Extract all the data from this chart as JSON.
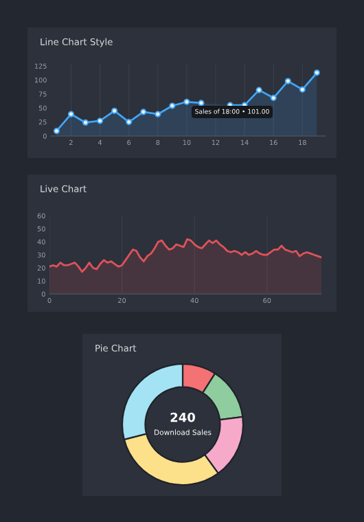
{
  "chart_data": [
    {
      "type": "area",
      "title": "Line Chart Style",
      "x": [
        1,
        2,
        3,
        4,
        5,
        6,
        7,
        8,
        9,
        10,
        11,
        12,
        13,
        14,
        15,
        16,
        17,
        18,
        19
      ],
      "series": [
        {
          "color": "#42a5f5",
          "values": [
            9,
            39,
            24,
            27,
            45,
            25,
            43,
            39,
            54,
            61,
            59,
            null,
            55,
            55,
            82,
            68,
            98,
            83,
            113
          ]
        }
      ],
      "xlim": [
        0.6,
        19.6
      ],
      "ylim": [
        0,
        130
      ],
      "xticks": [
        2,
        4,
        6,
        8,
        10,
        12,
        14,
        16,
        18
      ],
      "yticks": [
        0,
        25,
        50,
        75,
        100,
        125
      ],
      "marker": "circle",
      "grid": "x",
      "annotations": [
        "Sales of 18:00 • 101.00"
      ]
    },
    {
      "type": "area",
      "title": "Live Chart",
      "x": [
        0,
        1,
        2,
        3,
        4,
        5,
        6,
        7,
        8,
        9,
        10,
        11,
        12,
        13,
        14,
        15,
        16,
        17,
        18,
        19,
        20,
        21,
        22,
        23,
        24,
        25,
        26,
        27,
        28,
        29,
        30,
        31,
        32,
        33,
        34,
        35,
        36,
        37,
        38,
        39,
        40,
        41,
        42,
        43,
        44,
        45,
        46,
        47,
        48,
        49,
        50,
        51,
        52,
        53,
        54,
        55,
        56,
        57,
        58,
        59,
        60,
        61,
        62,
        63,
        64,
        65,
        66,
        67,
        68,
        69,
        70,
        71,
        72,
        73,
        74,
        75
      ],
      "series": [
        {
          "color": "#e0525a",
          "values": [
            21,
            22,
            21,
            24,
            22,
            22,
            23,
            24,
            21,
            17,
            20,
            24,
            20,
            19,
            23,
            26,
            24,
            25,
            23,
            21,
            22,
            26,
            30,
            34,
            33,
            28,
            25,
            29,
            31,
            35,
            40,
            41,
            37,
            34,
            35,
            38,
            37,
            36,
            42,
            41,
            38,
            36,
            35,
            38,
            41,
            39,
            41,
            38,
            36,
            33,
            32,
            33,
            32,
            30,
            32,
            30,
            31,
            33,
            31,
            30,
            30,
            32,
            34,
            34,
            37,
            34,
            33,
            32,
            33,
            29,
            31,
            32,
            31,
            30,
            29,
            28
          ]
        }
      ],
      "xlim": [
        0,
        75
      ],
      "ylim": [
        0,
        60
      ],
      "xticks": [
        0,
        20,
        40,
        60
      ],
      "yticks": [
        0,
        10,
        20,
        30,
        40,
        50,
        60
      ],
      "marker": "none",
      "grid": "x"
    },
    {
      "type": "donut",
      "title": "Pie Chart",
      "categories": [
        null,
        null,
        null,
        null,
        null
      ],
      "values": [
        9,
        14,
        17,
        31,
        29
      ],
      "colors": [
        "#f47174",
        "#8fcc9e",
        "#f6a9c8",
        "#fde08a",
        "#a3e3f3"
      ],
      "annotations": [
        "240",
        "Download Sales"
      ]
    }
  ]
}
